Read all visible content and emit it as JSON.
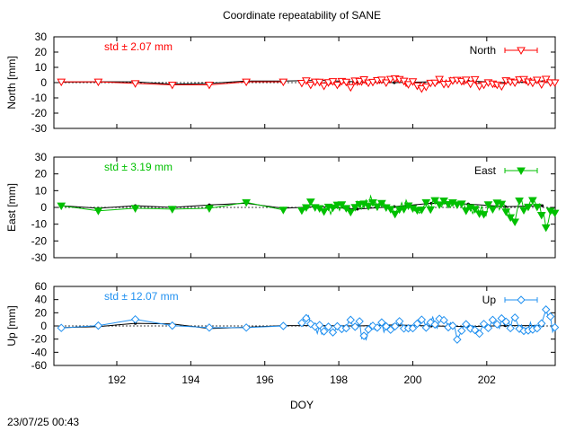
{
  "title": "Coordinate repeatability of SANE",
  "timestamp": "23/07/25 00:43",
  "chart_data": {
    "type": "line",
    "xlabel": "DOY",
    "xlim": [
      190.3,
      203.85
    ],
    "x_ticks": [
      "192",
      "194",
      "196",
      "198",
      "200",
      "202"
    ],
    "grid": false,
    "legend_position": "top-right",
    "panels": [
      {
        "id": "north",
        "ylabel": "North [mm]",
        "ylim": [
          -30,
          30
        ],
        "y_ticks": [
          "-30",
          "-20",
          "-10",
          "0",
          "10",
          "20",
          "30"
        ],
        "std_label": "std ± 2.07 mm",
        "series_name": "North",
        "color": "#ff0000",
        "marker": "triangle-down-open",
        "daily": {
          "x": [
            190.5,
            191.5,
            192.5,
            193.5,
            194.5,
            195.5,
            196.5
          ],
          "y": [
            0.5,
            0.5,
            -0.5,
            -1.5,
            -1.5,
            0.5,
            0.5
          ]
        },
        "reference": {
          "x": [
            190.5,
            191.5,
            192.5,
            193.5,
            194.5,
            195.5,
            196.5,
            197.5,
            198.5,
            199.5,
            200.5,
            201.5,
            202.5,
            203.5
          ],
          "y": [
            0.3,
            0.5,
            0.5,
            -1.0,
            -0.5,
            1.0,
            1.0,
            1.5,
            0.5,
            0.0,
            0.5,
            1.0,
            0.0,
            0.5
          ]
        },
        "subdaily": {
          "x_start": 197.0,
          "x_end": 203.85,
          "step": 0.06,
          "base": 0.0,
          "amplitude": 2.07,
          "bumps": [
            [
              197.3,
              -2.0
            ],
            [
              199.6,
              2.5
            ],
            [
              200.3,
              -1.0
            ],
            [
              202.9,
              1.5
            ]
          ]
        }
      },
      {
        "id": "east",
        "ylabel": "East [mm]",
        "ylim": [
          -30,
          30
        ],
        "y_ticks": [
          "-30",
          "-20",
          "-10",
          "0",
          "10",
          "20",
          "30"
        ],
        "std_label": "std ± 3.19 mm",
        "series_name": "East",
        "color": "#00c000",
        "marker": "triangle-down-filled",
        "daily": {
          "x": [
            190.5,
            191.5,
            192.5,
            193.5,
            194.5,
            195.5,
            196.5
          ],
          "y": [
            1.0,
            -2.0,
            -0.5,
            -1.0,
            -0.5,
            3.0,
            -1.5
          ]
        },
        "reference": {
          "x": [
            190.5,
            191.5,
            192.5,
            193.5,
            194.5,
            195.5,
            196.5,
            197.5,
            198.5,
            199.5,
            200.5,
            201.5,
            202.5,
            203.5
          ],
          "y": [
            1.0,
            -0.5,
            1.0,
            0.0,
            1.5,
            2.5,
            -0.5,
            0.5,
            -1.0,
            0.5,
            2.5,
            2.0,
            0.5,
            1.0
          ]
        },
        "subdaily": {
          "x_start": 197.0,
          "x_end": 203.85,
          "step": 0.06,
          "base": 0.0,
          "amplitude": 3.19,
          "bumps": [
            [
              198.9,
              4.5
            ],
            [
              199.8,
              3.0
            ],
            [
              202.7,
              -9.0
            ],
            [
              203.6,
              -7.5
            ]
          ]
        }
      },
      {
        "id": "up",
        "ylabel": "Up [mm]",
        "ylim": [
          -60,
          60
        ],
        "y_ticks": [
          "-60",
          "-40",
          "-20",
          "0",
          "20",
          "40",
          "60"
        ],
        "std_label": "std ± 12.07 mm",
        "series_name": "Up",
        "color": "#2090f0",
        "marker": "diamond-open",
        "daily": {
          "x": [
            190.5,
            191.5,
            192.5,
            193.5,
            194.5,
            195.5,
            196.5
          ],
          "y": [
            -3.0,
            0.5,
            10.0,
            0.5,
            -2.5,
            -2.5,
            0.0
          ]
        },
        "reference": {
          "x": [
            190.5,
            191.5,
            192.5,
            193.5,
            194.5,
            195.5,
            196.5,
            197.5,
            198.5,
            199.5,
            200.5,
            201.5,
            202.5,
            203.5
          ],
          "y": [
            -2.5,
            -1.0,
            4.0,
            3.0,
            -4.0,
            -2.0,
            0.5,
            0.5,
            0.0,
            1.5,
            0.0,
            -1.0,
            0.5,
            0.5
          ]
        },
        "subdaily": {
          "x_start": 197.0,
          "x_end": 203.85,
          "step": 0.06,
          "base": 0.0,
          "amplitude": 8.0,
          "bumps": [
            [
              197.1,
              18.0
            ],
            [
              198.7,
              -25.0
            ],
            [
              199.6,
              18.0
            ],
            [
              201.2,
              -10.0
            ],
            [
              203.6,
              30.0
            ]
          ]
        }
      }
    ]
  }
}
